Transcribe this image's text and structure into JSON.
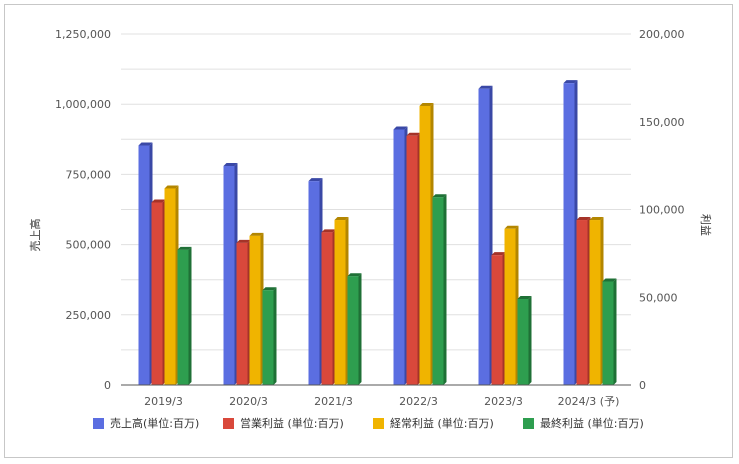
{
  "chart_data": {
    "type": "bar",
    "categories": [
      "2019/3",
      "2020/3",
      "2021/3",
      "2022/3",
      "2023/3",
      "2024/3 (予)"
    ],
    "series": [
      {
        "name": "売上高(単位:百万)",
        "axis": "left",
        "color": "#5b6ee1",
        "side_color": "#3a48a6",
        "values": [
          853000,
          780000,
          726000,
          910000,
          1055000,
          1075000
        ]
      },
      {
        "name": "営業利益 (単位:百万)",
        "axis": "right",
        "color": "#d9483b",
        "side_color": "#a53328",
        "values": [
          104000,
          81000,
          87000,
          142000,
          74000,
          94000
        ]
      },
      {
        "name": "経常利益 (単位:百万)",
        "axis": "right",
        "color": "#f0b400",
        "side_color": "#b38600",
        "values": [
          112000,
          85000,
          94000,
          159000,
          89000,
          94000
        ]
      },
      {
        "name": "最終利益 (単位:百万)",
        "axis": "right",
        "color": "#2e9e4f",
        "side_color": "#1f7036",
        "values": [
          77000,
          54000,
          62000,
          107000,
          49000,
          59000
        ]
      }
    ],
    "ylabel": "売上高",
    "y2label": "利益",
    "ylim": [
      0,
      1250000
    ],
    "y2lim": [
      0,
      200000
    ],
    "yticks": [
      "0",
      "250,000",
      "500,000",
      "750,000",
      "1,000,000",
      "1,250,000"
    ],
    "y2ticks": [
      "0",
      "50,000",
      "100,000",
      "150,000",
      "200,000"
    ],
    "grid": true,
    "legend": "bottom"
  }
}
